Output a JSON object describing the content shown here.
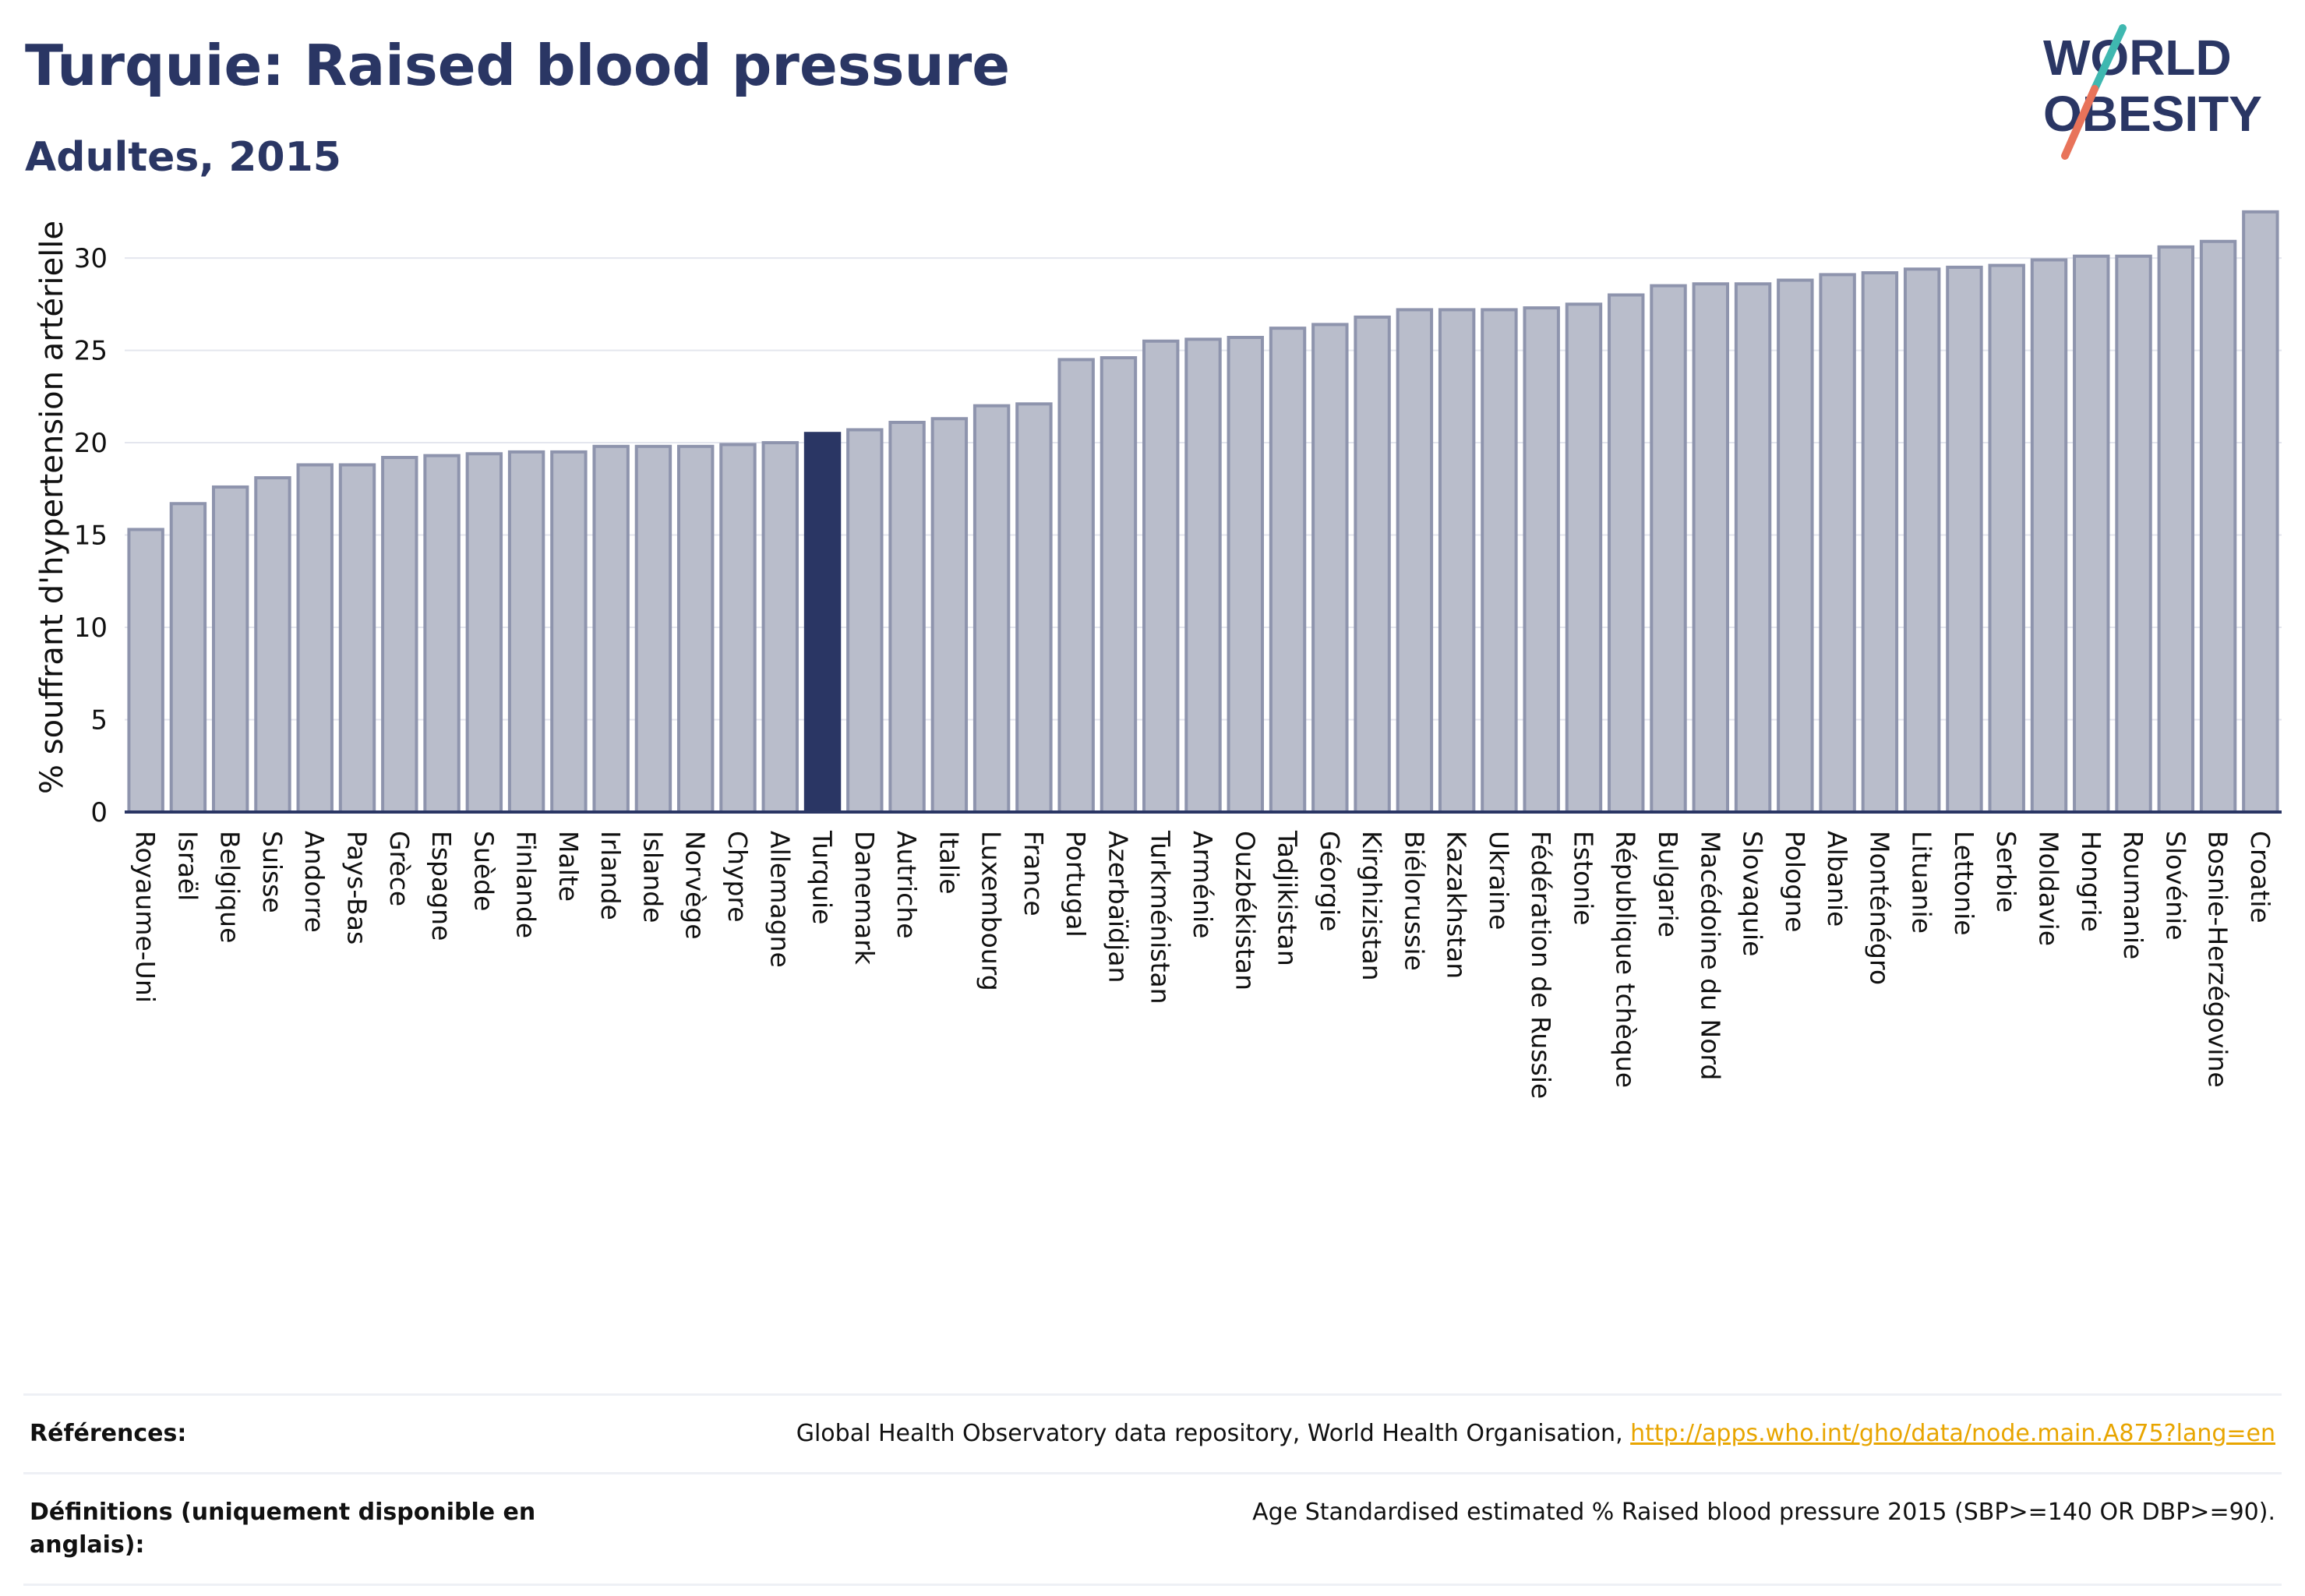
{
  "header": {
    "title": "Turquie: Raised blood pressure",
    "subtitle": "Adultes, 2015"
  },
  "logo": {
    "line1": "WORLD",
    "line2": "OBESITY",
    "colors": {
      "text": "#2a3664",
      "teal": "#3fb8b0",
      "coral": "#e8735a"
    }
  },
  "chart_data": {
    "type": "bar",
    "title": "Turquie: Raised blood pressure",
    "subtitle": "Adultes, 2015",
    "xlabel": "",
    "ylabel": "% souffrant d'hypertension artérielle",
    "ylim": [
      0,
      33
    ],
    "yticks": [
      0,
      5,
      10,
      15,
      20,
      25,
      30
    ],
    "grid": true,
    "highlight": "Turquie",
    "colors": {
      "bar": "#b9bdcb",
      "bar_stroke": "#8e94ad",
      "highlight": "#2a3664"
    },
    "categories": [
      "Royaume-Uni",
      "Israël",
      "Belgique",
      "Suisse",
      "Andorre",
      "Pays-Bas",
      "Grèce",
      "Espagne",
      "Suède",
      "Finlande",
      "Malte",
      "Irlande",
      "Islande",
      "Norvège",
      "Chypre",
      "Allemagne",
      "Turquie",
      "Danemark",
      "Autriche",
      "Italie",
      "Luxembourg",
      "France",
      "Portugal",
      "Azerbaïdjan",
      "Turkménistan",
      "Arménie",
      "Ouzbékistan",
      "Tadjikistan",
      "Géorgie",
      "Kirghizistan",
      "Biélorussie",
      "Kazakhstan",
      "Ukraine",
      "Fédération de Russie",
      "Estonie",
      "République tchèque",
      "Bulgarie",
      "Macédoine du Nord",
      "Slovaquie",
      "Pologne",
      "Albanie",
      "Monténégro",
      "Lituanie",
      "Lettonie",
      "Serbie",
      "Moldavie",
      "Hongrie",
      "Roumanie",
      "Slovénie",
      "Bosnie-Herzégovine",
      "Croatie"
    ],
    "values": [
      15.3,
      16.7,
      17.6,
      18.1,
      18.8,
      18.8,
      19.2,
      19.3,
      19.4,
      19.5,
      19.5,
      19.8,
      19.8,
      19.8,
      19.9,
      20.0,
      20.5,
      20.7,
      21.1,
      21.3,
      22.0,
      22.1,
      24.5,
      24.6,
      25.5,
      25.6,
      25.7,
      26.2,
      26.4,
      26.8,
      27.2,
      27.2,
      27.2,
      27.3,
      27.5,
      28.0,
      28.5,
      28.6,
      28.6,
      28.8,
      29.1,
      29.2,
      29.4,
      29.5,
      29.6,
      29.9,
      30.1,
      30.1,
      30.6,
      30.9,
      32.5
    ]
  },
  "footer": {
    "references_label": "Références:",
    "references_text": "Global Health Observatory data repository, World Health Organisation, ",
    "references_link": "http://apps.who.int/gho/data/node.main.A875?lang=en",
    "definitions_label": "Définitions (uniquement disponible en anglais):",
    "definitions_text": "Age Standardised estimated % Raised blood pressure 2015 (SBP>=140 OR DBP>=90)."
  }
}
